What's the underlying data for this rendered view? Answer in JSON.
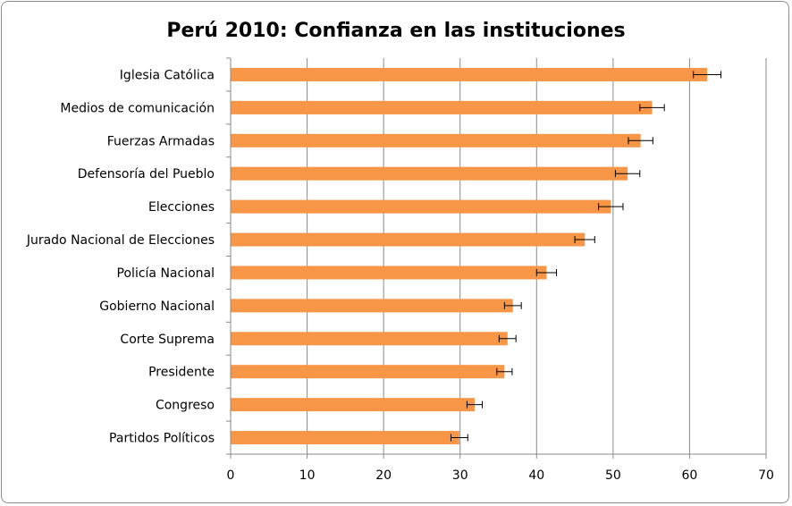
{
  "chart_data": {
    "type": "bar",
    "orientation": "horizontal",
    "title": "Perú 2010: Confianza en las instituciones",
    "xlabel": "",
    "ylabel": "",
    "xlim": [
      0,
      70
    ],
    "xticks": [
      0,
      10,
      20,
      30,
      40,
      50,
      60,
      70
    ],
    "grid": "vertical",
    "legend": "none",
    "bar_color": "#f79646",
    "error_bar_color": "#000000",
    "categories": [
      "Iglesia Católica",
      "Medios de comunicación",
      "Fuerzas Armadas",
      "Defensoría del Pueblo",
      "Elecciones",
      "Jurado Nacional de Elecciones",
      "Policía Nacional",
      "Gobierno Nacional",
      "Corte Suprema",
      "Presidente",
      "Congreso",
      "Partidos Políticos"
    ],
    "values": [
      62.3,
      55.1,
      53.6,
      51.9,
      49.7,
      46.3,
      41.3,
      36.9,
      36.2,
      35.8,
      31.9,
      29.9
    ],
    "error_low": [
      60.5,
      53.5,
      52.0,
      50.3,
      48.1,
      45.0,
      40.0,
      35.8,
      35.1,
      34.8,
      30.9,
      28.8
    ],
    "error_high": [
      64.1,
      56.7,
      55.2,
      53.5,
      51.3,
      47.6,
      42.6,
      38.0,
      37.3,
      36.8,
      32.9,
      31.0
    ]
  }
}
